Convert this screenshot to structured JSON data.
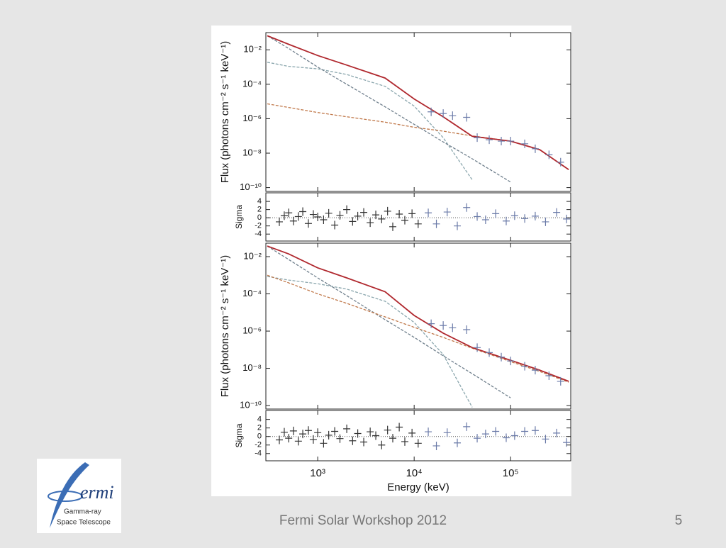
{
  "footer": "Fermi Solar Workshop 2012",
  "page_number": "5",
  "logo": {
    "word": "ermi",
    "line1": "Gamma-ray",
    "line2": "Space Telescope"
  },
  "chart_data": [
    {
      "type": "line",
      "ylabel": "Flux (photons cm⁻² s⁻¹ keV⁻¹)",
      "xscale": "log",
      "yscale": "log",
      "xlim": [
        290,
        420000
      ],
      "ylim": [
        6e-11,
        0.1
      ],
      "yticks": [
        {
          "value": 0.01,
          "label": "10⁻²"
        },
        {
          "value": 0.0001,
          "label": "10⁻⁴"
        },
        {
          "value": 1e-06,
          "label": "10⁻⁶"
        },
        {
          "value": 1e-08,
          "label": "10⁻⁸"
        },
        {
          "value": 1e-10,
          "label": "10⁻¹⁰"
        }
      ],
      "x": [
        300,
        500,
        1000,
        2000,
        5000,
        10000,
        20000,
        40000,
        100000,
        200000,
        400000
      ],
      "series": [
        {
          "color": "#8aa6ad",
          "dashed": true,
          "values": [
            0.0019,
            0.0011,
            0.00079,
            0.00037,
            7.6e-05,
            5.4e-06,
            7.9e-08,
            2.8e-10,
            null,
            null,
            null
          ]
        },
        {
          "color": "#6f7f8c",
          "dashed": true,
          "values": [
            0.066,
            0.012,
            0.001,
            0.0001,
            4.9e-06,
            4.7e-07,
            4.5e-08,
            4.7e-09,
            2.1e-10,
            null,
            null
          ]
        },
        {
          "color": "#c0784a",
          "dashed": true,
          "values": [
            7.3e-06,
            4.5e-06,
            2.3e-06,
            1.3e-06,
            6.3e-07,
            3.2e-07,
            1.9e-07,
            1e-07,
            5e-08,
            null,
            null
          ]
        },
        {
          "color": "#b0282e",
          "dashed": false,
          "values": [
            0.066,
            0.021,
            0.0047,
            0.0013,
            0.00023,
            1.4e-05,
            1.3e-06,
            9.5e-08,
            5e-08,
            1.6e-08,
            1.1e-09
          ]
        }
      ],
      "points": {
        "color": "#6a7aa8",
        "x": [
          15000,
          20000,
          25000,
          35000,
          45000,
          60000,
          80000,
          100000,
          140000,
          180000,
          250000,
          330000
        ],
        "values": [
          2.5e-06,
          2e-06,
          1.5e-06,
          1.2e-06,
          8e-08,
          6e-08,
          5e-08,
          5e-08,
          3.5e-08,
          1.8e-08,
          8e-09,
          3e-09
        ]
      }
    },
    {
      "type": "scatter",
      "ylabel": "Sigma",
      "xscale": "log",
      "xlim": [
        290,
        420000
      ],
      "ylim": [
        -5.7,
        6.1
      ],
      "yticks": [
        4,
        2,
        0,
        -2,
        -4
      ],
      "series": [
        {
          "color": "#333333",
          "x": [
            400,
            450,
            500,
            560,
            630,
            700,
            800,
            900,
            1000,
            1150,
            1300,
            1500,
            1700,
            2000,
            2300,
            2600,
            3000,
            3500,
            4000,
            4600,
            5300,
            6000,
            7000,
            8000,
            9500,
            11000
          ],
          "values": [
            -1,
            0.5,
            1.2,
            -0.8,
            0.3,
            1.5,
            -1.4,
            0.8,
            0.2,
            -0.5,
            1.1,
            -1.8,
            0.6,
            2,
            -0.9,
            0.4,
            1.3,
            -1.2,
            0.7,
            -0.3,
            1.6,
            -2.2,
            0.9,
            -0.6,
            1,
            -1.5
          ]
        },
        {
          "color": "#6a7aa8",
          "x": [
            14000,
            17000,
            22000,
            28000,
            35000,
            45000,
            55000,
            70000,
            90000,
            110000,
            140000,
            180000,
            230000,
            300000,
            380000
          ],
          "values": [
            1.2,
            -1.5,
            1.4,
            -2,
            2.5,
            0.3,
            -0.5,
            1,
            -0.8,
            0.5,
            -0.2,
            0.4,
            -1,
            1.3,
            -0.3
          ]
        }
      ]
    },
    {
      "type": "line",
      "ylabel": "Flux (photons cm⁻² s⁻¹ keV⁻¹)",
      "xscale": "log",
      "yscale": "log",
      "xlim": [
        290,
        420000
      ],
      "ylim": [
        6.5e-11,
        0.053
      ],
      "yticks": [
        {
          "value": 0.01,
          "label": "10⁻²"
        },
        {
          "value": 0.0001,
          "label": "10⁻⁴"
        },
        {
          "value": 1e-06,
          "label": "10⁻⁶"
        },
        {
          "value": 1e-08,
          "label": "10⁻⁸"
        },
        {
          "value": 1e-10,
          "label": "10⁻¹⁰"
        }
      ],
      "x": [
        300,
        500,
        1000,
        2000,
        5000,
        10000,
        20000,
        40000,
        100000,
        200000,
        400000
      ],
      "series": [
        {
          "color": "#8aa6ad",
          "dashed": true,
          "values": [
            0.00086,
            0.00055,
            0.00035,
            0.00018,
            4e-05,
            2.9e-06,
            5.5e-08,
            8e-11,
            null,
            null,
            null
          ]
        },
        {
          "color": "#6f7f8c",
          "dashed": true,
          "values": [
            0.037,
            0.007,
            0.00072,
            8e-05,
            4.1e-06,
            4.6e-07,
            4.7e-08,
            5.1e-09,
            2.6e-10,
            null,
            null
          ]
        },
        {
          "color": "#c0784a",
          "dashed": true,
          "values": [
            0.001,
            0.00039,
            0.0001,
            3.1e-05,
            5.8e-06,
            1.6e-06,
            4.6e-07,
            1.2e-07,
            2.3e-08,
            6.8e-09,
            1.8e-09
          ]
        },
        {
          "color": "#b0282e",
          "dashed": false,
          "values": [
            0.037,
            0.014,
            0.0025,
            0.00072,
            0.00013,
            6.9e-06,
            7.8e-07,
            1.3e-07,
            2.7e-08,
            8e-09,
            2e-09
          ]
        }
      ],
      "points": {
        "color": "#6a7aa8",
        "x": [
          15000,
          20000,
          25000,
          35000,
          45000,
          60000,
          80000,
          100000,
          140000,
          180000,
          250000,
          330000
        ],
        "values": [
          2.5e-06,
          2e-06,
          1.5e-06,
          1.2e-06,
          1.3e-07,
          7e-08,
          4e-08,
          2.5e-08,
          1.3e-08,
          8e-09,
          4e-09,
          2e-09
        ]
      }
    },
    {
      "type": "scatter",
      "ylabel": "Sigma",
      "xlabel": "Energy (keV)",
      "xscale": "log",
      "xlim": [
        290,
        420000
      ],
      "ylim": [
        -5.7,
        6.1
      ],
      "xticks": [
        {
          "value": 1000,
          "label": "10³"
        },
        {
          "value": 10000,
          "label": "10⁴"
        },
        {
          "value": 100000,
          "label": "10⁵"
        }
      ],
      "yticks": [
        4,
        2,
        0,
        -2,
        -4
      ],
      "series": [
        {
          "color": "#333333",
          "x": [
            400,
            450,
            500,
            560,
            630,
            700,
            800,
            900,
            1000,
            1150,
            1300,
            1500,
            1700,
            2000,
            2300,
            2600,
            3000,
            3500,
            4000,
            4600,
            5300,
            6000,
            7000,
            8000,
            9500,
            11000
          ],
          "values": [
            -0.8,
            1,
            -0.4,
            1.3,
            -1.1,
            0.6,
            1.4,
            -0.7,
            0.9,
            -1.6,
            0.3,
            1.2,
            -0.5,
            1.8,
            -1,
            0.7,
            -1.3,
            1.1,
            0.2,
            -2,
            1.5,
            -0.4,
            2.2,
            -1.2,
            0.8,
            -1.6
          ]
        },
        {
          "color": "#6a7aa8",
          "x": [
            14000,
            17000,
            22000,
            28000,
            35000,
            45000,
            55000,
            70000,
            90000,
            110000,
            140000,
            180000,
            230000,
            300000,
            380000
          ],
          "values": [
            1.1,
            -2.2,
            0.9,
            -1.5,
            2.3,
            -0.4,
            0.6,
            1.2,
            -0.3,
            0.2,
            1.2,
            1.4,
            -0.6,
            0.8,
            -1.4
          ]
        }
      ]
    }
  ]
}
